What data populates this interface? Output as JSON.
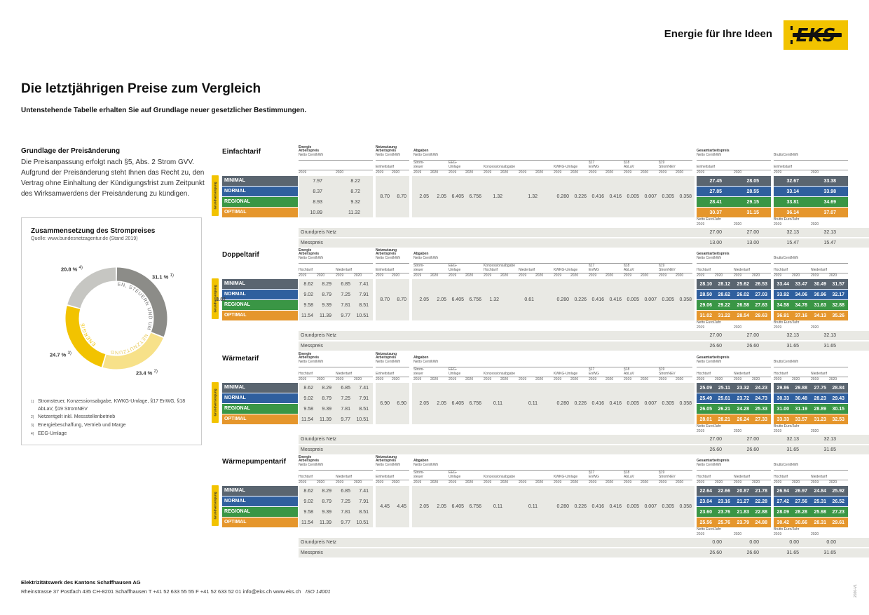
{
  "header": {
    "slogan": "Energie für Ihre Ideen",
    "logo_text": "EKS"
  },
  "title": "Die letztjährigen Preise zum Vergleich",
  "subtitle": "Untenstehende Tabelle erhalten Sie auf Grundlage neuer gesetzlicher Bestimmungen.",
  "basis": {
    "heading": "Grundlage der Preisänderung",
    "text": "Die Preisanpassung erfolgt nach §5, Abs. 2 Strom GVV. Aufgrund der Preisänderung steht Ihnen das Recht zu, den Vertrag ohne Einhaltung der Kündigungsfrist zum Zeitpunkt des Wirksamwerdens der Preisänderung zu kündigen."
  },
  "composition": {
    "heading": "Zusammensetzung des Strompreises",
    "source": "Quelle: www.bundesnetzagentur.de (Stand 2019)",
    "slices": [
      {
        "name": "ABGABEN, STEUERN UND UMLAGEN",
        "pct": "31.1 %",
        "sup": "1)",
        "value": 31.1,
        "color": "#8c8c88"
      },
      {
        "name": "NETZNUTZUNG",
        "pct": "23.4 %",
        "sup": "2)",
        "value": 23.4,
        "color": "#f7e189"
      },
      {
        "name": "ENERGIE",
        "pct": "24.7 %",
        "sup": "3)",
        "value": 24.7,
        "color": "#f2c300"
      },
      {
        "name": "",
        "pct": "20.8 %",
        "sup": "4)",
        "value": 20.8,
        "color": "#c6c6c2"
      }
    ],
    "footnotes": [
      {
        "n": "1)",
        "text": "Stromsteuer, Konzessionsabgabe, KWKG-Umlage, §17 EnWG, §18 AbLaV, §19 StromNEV"
      },
      {
        "n": "2)",
        "text": "Netzentgelt inkl. Messstellenbetrieb"
      },
      {
        "n": "3)",
        "text": "Energiebeschaffung, Vertrieb und Marge"
      },
      {
        "n": "4)",
        "text": "EEG-Umlage"
      }
    ]
  },
  "colors": {
    "minimal": "#5a6570",
    "normal": "#2f5f9e",
    "regional": "#3a9645",
    "optimal": "#e5962c",
    "yellow": "#f2c300"
  },
  "labels": {
    "grundversorgung": "Grundversorgung",
    "energie": "Energie",
    "arbeitspreis": "Arbeitspreis",
    "netto_ct": "Netto Cent/kWh",
    "netznutzung": "Netznutzung",
    "abgaben": "Abgaben",
    "einheitstarif": "Einheitstarif",
    "hochtarif": "Hochtarif",
    "niedertarif": "Niedertarif",
    "stromsteuer": "Strom-\nsteuer",
    "eeg": "EEG-\nUmlage",
    "konzession": "Konzessionsabgabe",
    "kwkg": "KWKG-Umlage",
    "p17": "§17\nEnWG",
    "p18": "§18\nAbLaV",
    "p19": "§19\nStromNEV",
    "gesamt": "Gesamtarbeitspreis",
    "brutto_ct": "BruttoCent/kWh",
    "netto_jahr": "Netto Euro/Jahr",
    "brutto_jahr": "Brutto Euro/Jahr",
    "y1": "2019",
    "y2": "2020",
    "grundpreis": "Grundpreis Netz",
    "messpreis": "Messpreis"
  },
  "tariffs": [
    {
      "name": "Einfachtarif",
      "single": true,
      "rows": [
        {
          "label": "MINIMAL",
          "energy": [
            "7.97",
            "8.22"
          ],
          "netto": [
            "27.45",
            "28.05"
          ],
          "brutto": [
            "32.67",
            "33.38"
          ]
        },
        {
          "label": "NORMAL",
          "energy": [
            "8.37",
            "8.72"
          ],
          "netto": [
            "27.85",
            "28.55"
          ],
          "brutto": [
            "33.14",
            "33.98"
          ]
        },
        {
          "label": "REGIONAL",
          "energy": [
            "8.93",
            "9.32"
          ],
          "netto": [
            "28.41",
            "29.15"
          ],
          "brutto": [
            "33.81",
            "34.69"
          ]
        },
        {
          "label": "OPTIMAL",
          "energy": [
            "10.89",
            "11.32"
          ],
          "netto": [
            "30.37",
            "31.15"
          ],
          "brutto": [
            "36.14",
            "37.07"
          ]
        }
      ],
      "netz": [
        "8.70",
        "8.70"
      ],
      "abgaben": [
        "2.05",
        "2.05",
        "6.405",
        "6.756",
        "1.32",
        "",
        "1.32",
        "",
        "0.280",
        "0.226",
        "0.416",
        "0.416",
        "0.005",
        "0.007",
        "0.305",
        "0.358"
      ],
      "grundpreis": [
        "27.00",
        "27.00",
        "32.13",
        "32.13"
      ],
      "messpreis": [
        "13.00",
        "13.00",
        "15.47",
        "15.47"
      ]
    },
    {
      "name": "Doppeltarif",
      "single": false,
      "rows": [
        {
          "label": "MINIMAL",
          "energy": [
            "8.62",
            "8.29",
            "6.85",
            "7.41"
          ],
          "netto": [
            "28.10",
            "28.12",
            "25.62",
            "26.53"
          ],
          "brutto": [
            "33.44",
            "33.47",
            "30.49",
            "31.57"
          ]
        },
        {
          "label": "NORMAL",
          "energy": [
            "9.02",
            "8.79",
            "7.25",
            "7.91"
          ],
          "netto": [
            "28.50",
            "28.62",
            "26.02",
            "27.03"
          ],
          "brutto": [
            "33.92",
            "34.06",
            "30.96",
            "32.17"
          ]
        },
        {
          "label": "REGIONAL",
          "energy": [
            "9.58",
            "9.39",
            "7.81",
            "8.51"
          ],
          "netto": [
            "29.06",
            "29.22",
            "26.58",
            "27.63"
          ],
          "brutto": [
            "34.58",
            "34.78",
            "31.63",
            "32.88"
          ]
        },
        {
          "label": "OPTIMAL",
          "energy": [
            "11.54",
            "11.39",
            "9.77",
            "10.51"
          ],
          "netto": [
            "31.02",
            "31.22",
            "28.54",
            "29.63"
          ],
          "brutto": [
            "36.91",
            "37.16",
            "34.13",
            "35.26"
          ]
        }
      ],
      "netz": [
        "8.70",
        "8.70"
      ],
      "abgaben": [
        "2.05",
        "2.05",
        "6.405",
        "6.756",
        "1.32",
        "1.32",
        "0.61",
        "0.61",
        "0.280",
        "0.226",
        "0.416",
        "0.416",
        "0.005",
        "0.007",
        "0.305",
        "0.358"
      ],
      "grundpreis": [
        "27.00",
        "27.00",
        "32.13",
        "32.13"
      ],
      "messpreis": [
        "26.60",
        "26.60",
        "31.65",
        "31.65"
      ]
    },
    {
      "name": "Wärmetarif",
      "single": false,
      "rows": [
        {
          "label": "MINIMAL",
          "energy": [
            "8.62",
            "8.29",
            "6.85",
            "7.41"
          ],
          "netto": [
            "25.09",
            "25.11",
            "23.32",
            "24.23"
          ],
          "brutto": [
            "29.86",
            "29.88",
            "27.75",
            "28.84"
          ]
        },
        {
          "label": "NORMAL",
          "energy": [
            "9.02",
            "8.79",
            "7.25",
            "7.91"
          ],
          "netto": [
            "25.49",
            "25.61",
            "23.72",
            "24.73"
          ],
          "brutto": [
            "30.33",
            "30.48",
            "28.23",
            "29.43"
          ]
        },
        {
          "label": "REGIONAL",
          "energy": [
            "9.58",
            "9.39",
            "7.81",
            "8.51"
          ],
          "netto": [
            "26.05",
            "26.21",
            "24.28",
            "25.33"
          ],
          "brutto": [
            "31.00",
            "31.19",
            "28.89",
            "30.15"
          ]
        },
        {
          "label": "OPTIMAL",
          "energy": [
            "11.54",
            "11.39",
            "9.77",
            "10.51"
          ],
          "netto": [
            "28.01",
            "28.21",
            "26.24",
            "27.33"
          ],
          "brutto": [
            "33.33",
            "33.57",
            "31.23",
            "32.53"
          ]
        }
      ],
      "netz": [
        "6.90",
        "6.90"
      ],
      "abgaben": [
        "2.05",
        "2.05",
        "6.405",
        "6.756",
        "0.11",
        "",
        "0.11",
        "",
        "0.280",
        "0.226",
        "0.416",
        "0.416",
        "0.005",
        "0.007",
        "0.305",
        "0.358"
      ],
      "grundpreis": [
        "27.00",
        "27.00",
        "32.13",
        "32.13"
      ],
      "messpreis": [
        "26.60",
        "26.60",
        "31.65",
        "31.65"
      ]
    },
    {
      "name": "Wärmepumpentarif",
      "single": false,
      "rows": [
        {
          "label": "MINIMAL",
          "energy": [
            "8.62",
            "8.29",
            "6.85",
            "7.41"
          ],
          "netto": [
            "22.64",
            "22.66",
            "20.87",
            "21.78"
          ],
          "brutto": [
            "26.94",
            "26.97",
            "24.84",
            "25.92"
          ]
        },
        {
          "label": "NORMAL",
          "energy": [
            "9.02",
            "8.79",
            "7.25",
            "7.91"
          ],
          "netto": [
            "23.04",
            "23.16",
            "21.27",
            "22.28"
          ],
          "brutto": [
            "27.42",
            "27.56",
            "25.31",
            "26.52"
          ]
        },
        {
          "label": "REGIONAL",
          "energy": [
            "9.58",
            "9.39",
            "7.81",
            "8.51"
          ],
          "netto": [
            "23.60",
            "23.76",
            "21.83",
            "22.88"
          ],
          "brutto": [
            "28.09",
            "28.28",
            "25.98",
            "27.23"
          ]
        },
        {
          "label": "OPTIMAL",
          "energy": [
            "11.54",
            "11.39",
            "9.77",
            "10.51"
          ],
          "netto": [
            "25.56",
            "25.76",
            "23.79",
            "24.88"
          ],
          "brutto": [
            "30.42",
            "30.66",
            "28.31",
            "29.61"
          ]
        }
      ],
      "netz": [
        "4.45",
        "4.45"
      ],
      "abgaben": [
        "2.05",
        "2.05",
        "6.405",
        "6.756",
        "0.11",
        "",
        "0.11",
        "",
        "0.280",
        "0.226",
        "0.416",
        "0.416",
        "0.005",
        "0.007",
        "0.305",
        "0.358"
      ],
      "grundpreis": [
        "0.00",
        "0.00",
        "0.00",
        "0.00"
      ],
      "messpreis": [
        "26.60",
        "26.60",
        "31.65",
        "31.65"
      ]
    }
  ],
  "footer": {
    "company": "Elektrizitätswerk des Kantons Schaffhausen AG",
    "address": "Rheinstrasse 37   Postfach 435   CH-8201 Schaffhausen   T +41 52 633 55 55   F +41 52 633 52 01   info@eks.ch   www.eks.ch",
    "iso": "ISO 14001"
  },
  "version": "2020-V1"
}
